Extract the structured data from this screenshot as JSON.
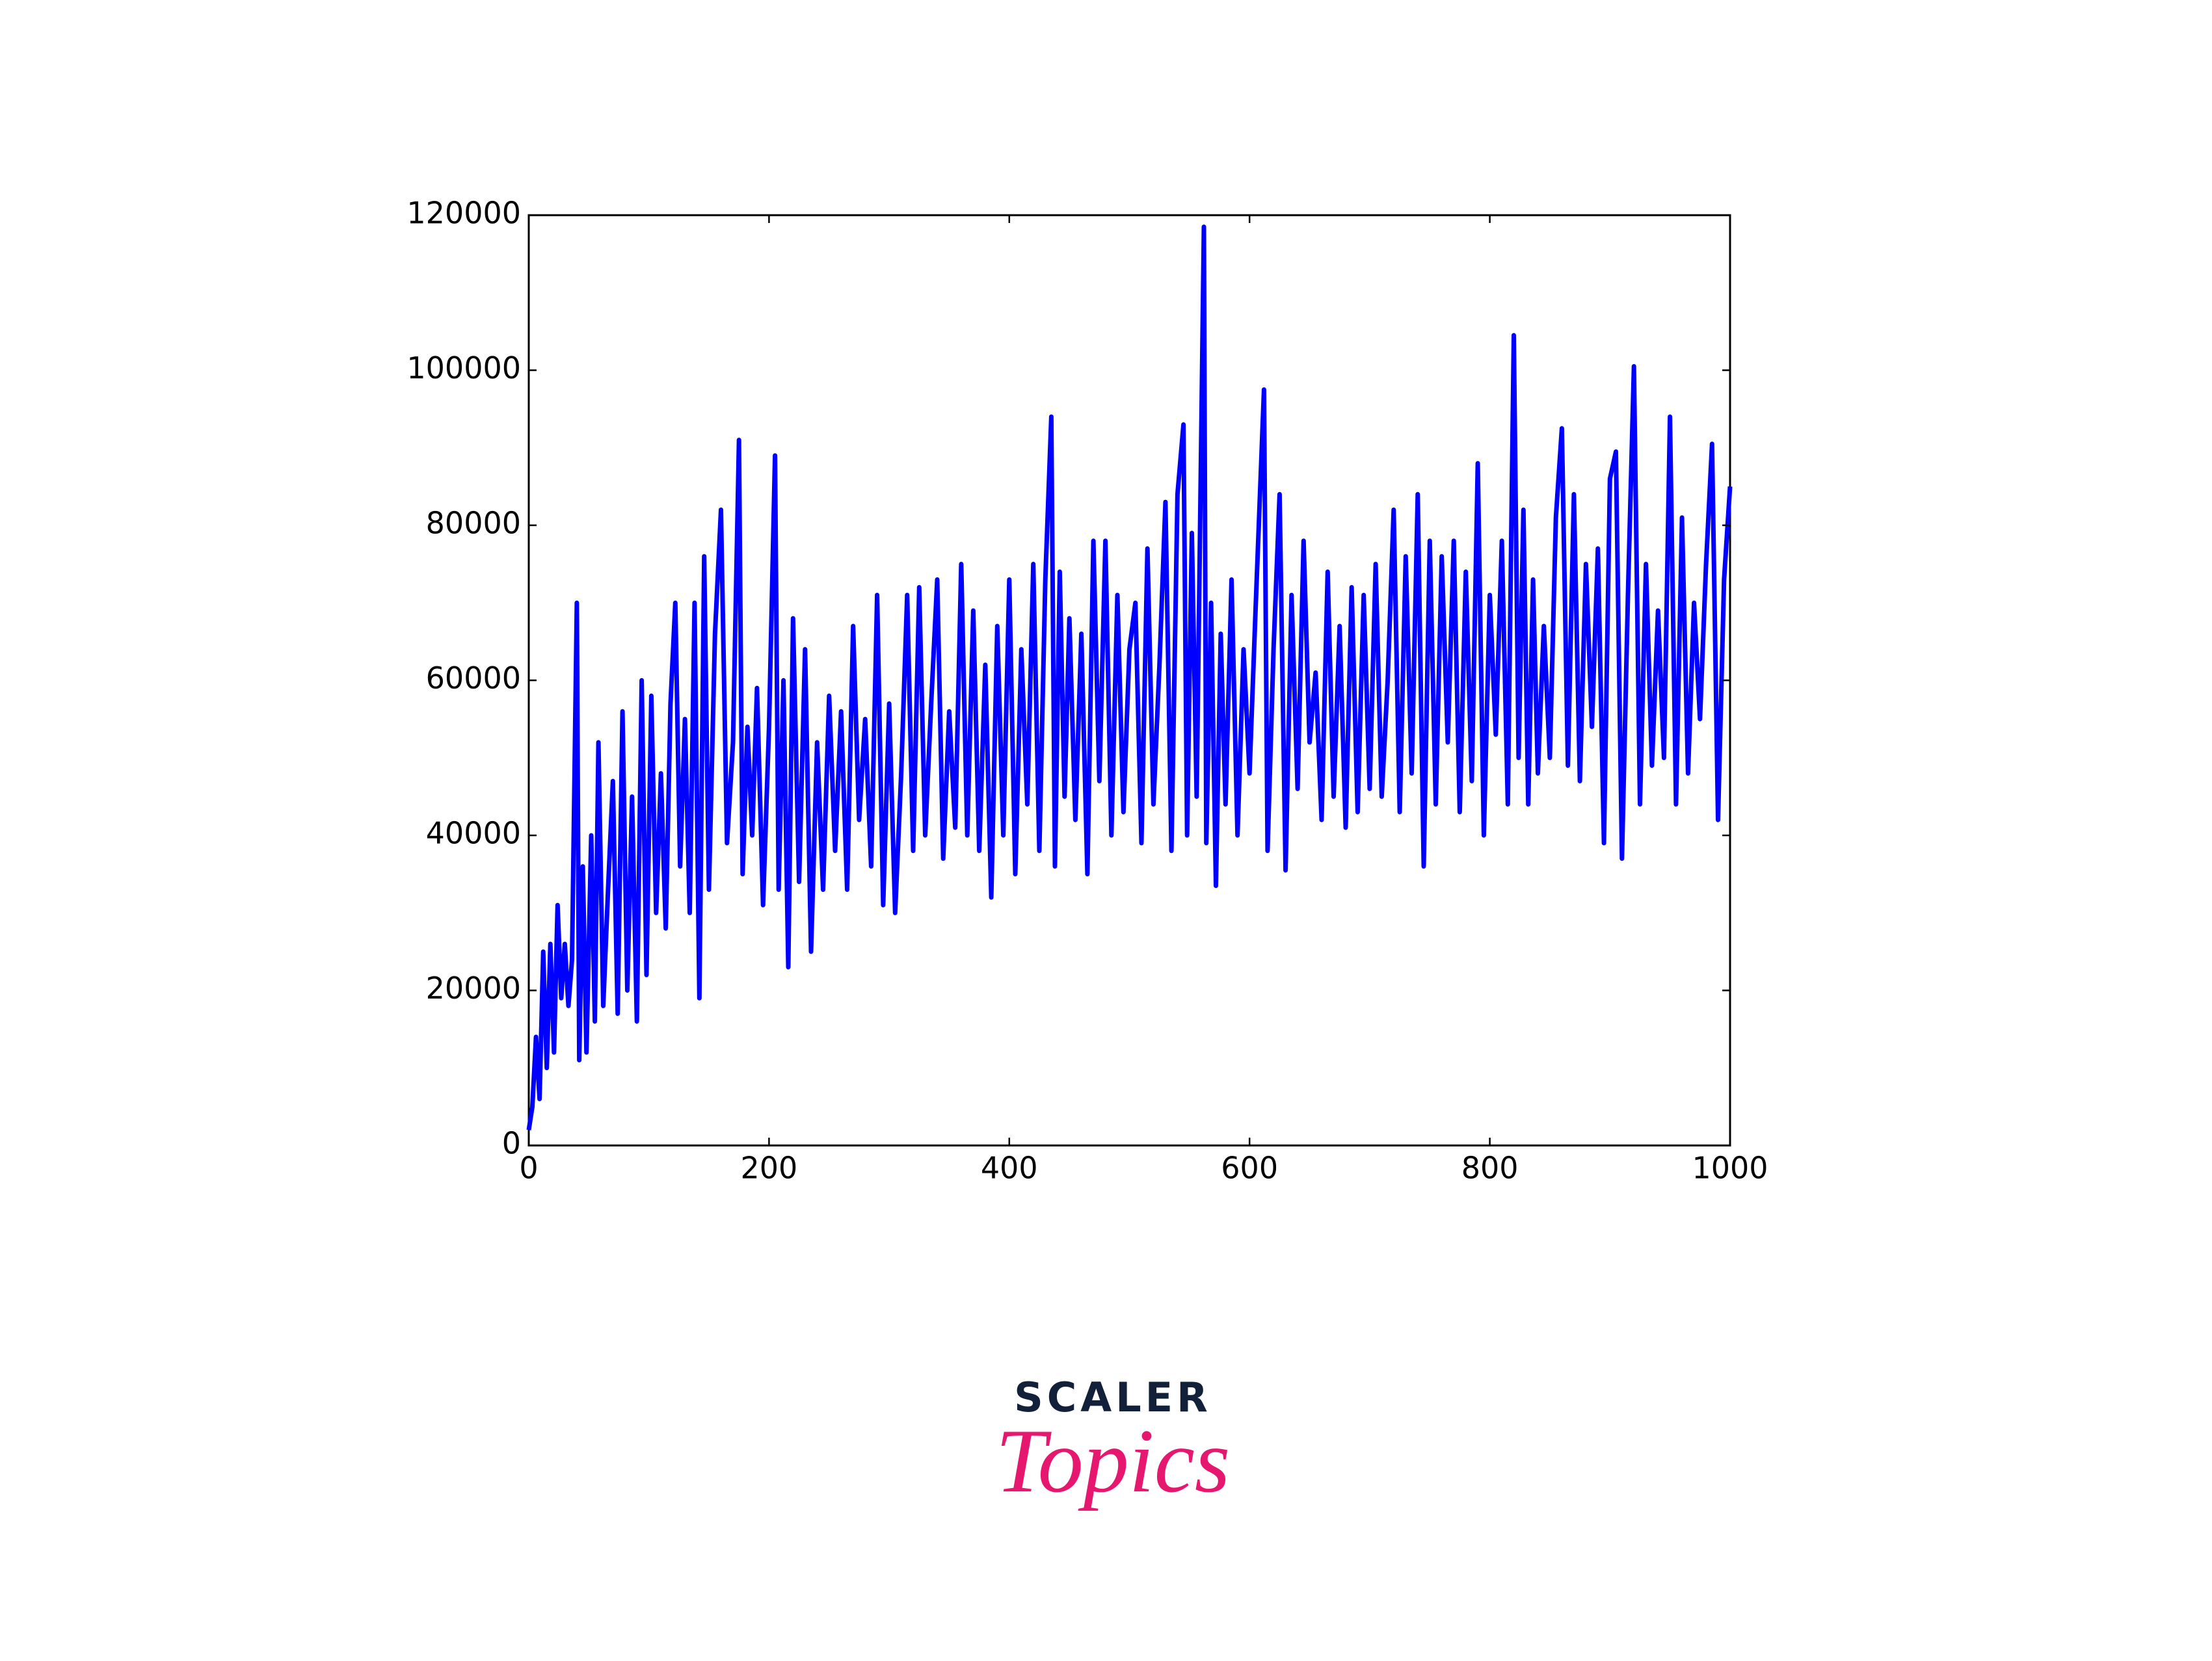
{
  "chart_data": {
    "type": "line",
    "color": "#0000ff",
    "xlim": [
      0,
      1000
    ],
    "xticks": [
      0,
      200,
      400,
      600,
      800,
      1000
    ],
    "ylim": [
      0,
      120000
    ],
    "yticks": [
      0,
      20000,
      40000,
      60000,
      80000,
      100000,
      120000
    ],
    "grid": false,
    "x": [
      0,
      3,
      6,
      9,
      12,
      15,
      18,
      21,
      24,
      27,
      30,
      33,
      36,
      40,
      42,
      45,
      48,
      52,
      55,
      58,
      62,
      66,
      70,
      74,
      78,
      82,
      86,
      90,
      94,
      98,
      102,
      106,
      110,
      114,
      118,
      122,
      126,
      130,
      134,
      138,
      142,
      146,
      150,
      155,
      160,
      165,
      170,
      175,
      178,
      182,
      186,
      190,
      195,
      200,
      205,
      208,
      212,
      216,
      220,
      225,
      230,
      235,
      240,
      245,
      250,
      255,
      260,
      265,
      270,
      275,
      280,
      285,
      290,
      295,
      300,
      305,
      310,
      315,
      320,
      325,
      330,
      335,
      340,
      345,
      350,
      355,
      360,
      365,
      370,
      375,
      380,
      385,
      390,
      395,
      400,
      405,
      410,
      415,
      420,
      425,
      430,
      435,
      438,
      442,
      446,
      450,
      455,
      460,
      465,
      470,
      475,
      480,
      485,
      490,
      495,
      500,
      505,
      510,
      515,
      520,
      525,
      530,
      535,
      540,
      545,
      548,
      552,
      556,
      562,
      564,
      568,
      572,
      576,
      580,
      585,
      590,
      595,
      600,
      605,
      612,
      615,
      620,
      625,
      630,
      635,
      640,
      645,
      650,
      655,
      660,
      665,
      670,
      675,
      680,
      685,
      690,
      695,
      700,
      705,
      710,
      715,
      720,
      725,
      730,
      735,
      740,
      745,
      750,
      755,
      760,
      765,
      770,
      775,
      780,
      785,
      790,
      795,
      800,
      805,
      810,
      815,
      820,
      824,
      828,
      832,
      836,
      840,
      845,
      850,
      855,
      860,
      865,
      870,
      875,
      880,
      885,
      890,
      895,
      900,
      905,
      910,
      915,
      920,
      925,
      930,
      935,
      940,
      945,
      950,
      955,
      960,
      965,
      970,
      975,
      980,
      985,
      990,
      995,
      1000
    ],
    "values": [
      2000,
      5000,
      14000,
      6000,
      25000,
      10000,
      26000,
      12000,
      31000,
      19000,
      26000,
      18000,
      24000,
      70000,
      11000,
      36000,
      12000,
      40000,
      16000,
      52000,
      18000,
      33000,
      47000,
      17000,
      56000,
      20000,
      45000,
      16000,
      60000,
      22000,
      58000,
      30000,
      48000,
      28000,
      57000,
      70000,
      36000,
      55000,
      30000,
      70000,
      19000,
      76000,
      33000,
      66000,
      82000,
      39000,
      52000,
      91000,
      35000,
      54000,
      40000,
      59000,
      31000,
      54000,
      89000,
      33000,
      60000,
      23000,
      68000,
      34000,
      64000,
      25000,
      52000,
      33000,
      58000,
      38000,
      56000,
      33000,
      67000,
      42000,
      55000,
      36000,
      71000,
      31000,
      57000,
      30000,
      48000,
      71000,
      38000,
      72000,
      40000,
      57000,
      73000,
      37000,
      56000,
      41000,
      75000,
      40000,
      69000,
      38000,
      62000,
      32000,
      67000,
      40000,
      73000,
      35000,
      64000,
      44000,
      75000,
      38000,
      73000,
      94000,
      36000,
      74000,
      45000,
      68000,
      42000,
      66000,
      35000,
      78000,
      47000,
      78000,
      40000,
      71000,
      43000,
      64000,
      70000,
      39000,
      77000,
      44000,
      62000,
      83000,
      38000,
      84000,
      93000,
      40000,
      79000,
      45000,
      118500,
      39000,
      70000,
      33500,
      66000,
      44000,
      73000,
      40000,
      64000,
      48000,
      69000,
      97500,
      38000,
      64000,
      84000,
      35500,
      71000,
      46000,
      78000,
      52000,
      61000,
      42000,
      74000,
      45000,
      67000,
      41000,
      72000,
      43000,
      71000,
      46000,
      75000,
      45000,
      60000,
      82000,
      43000,
      76000,
      48000,
      84000,
      36000,
      78000,
      44000,
      76000,
      52000,
      78000,
      43000,
      74000,
      47000,
      88000,
      40000,
      71000,
      53000,
      78000,
      44000,
      104500,
      50000,
      82000,
      44000,
      73000,
      48000,
      67000,
      50000,
      81000,
      92500,
      49000,
      84000,
      47000,
      75000,
      54000,
      77000,
      39000,
      86000,
      89500,
      37000,
      71000,
      100500,
      44000,
      75000,
      49000,
      69000,
      50000,
      94000,
      44000,
      81000,
      48000,
      70000,
      55000,
      75000,
      90500,
      42000,
      73000,
      85000
    ]
  },
  "logo": {
    "line1": "SCALER",
    "line2": "Topics"
  }
}
